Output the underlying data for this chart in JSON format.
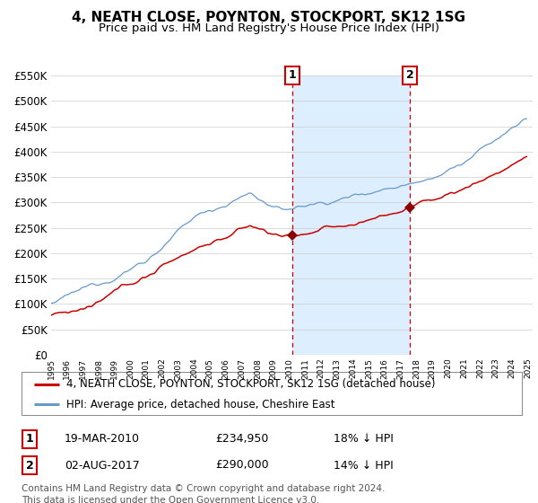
{
  "title": "4, NEATH CLOSE, POYNTON, STOCKPORT, SK12 1SG",
  "subtitle": "Price paid vs. HM Land Registry's House Price Index (HPI)",
  "ylim": [
    0,
    550000
  ],
  "yticks": [
    0,
    50000,
    100000,
    150000,
    200000,
    250000,
    300000,
    350000,
    400000,
    450000,
    500000,
    550000
  ],
  "x_start_year": 1995,
  "x_end_year": 2025,
  "sale1_date": "19-MAR-2010",
  "sale1_price": 234950,
  "sale2_date": "02-AUG-2017",
  "sale2_price": 290000,
  "sale1_hpi_diff": "18% ↓ HPI",
  "sale2_hpi_diff": "14% ↓ HPI",
  "legend_line1": "4, NEATH CLOSE, POYNTON, STOCKPORT, SK12 1SG (detached house)",
  "legend_line2": "HPI: Average price, detached house, Cheshire East",
  "footnote": "Contains HM Land Registry data © Crown copyright and database right 2024.\nThis data is licensed under the Open Government Licence v3.0.",
  "line_color_red": "#cc0000",
  "line_color_blue": "#6699cc",
  "shade_color": "#ddeeff",
  "grid_color": "#cccccc",
  "bg_color": "#ffffff",
  "sale_marker_color": "#880000",
  "vline_color": "#cc0000",
  "box_color": "#cc0000",
  "title_fontsize": 11,
  "subtitle_fontsize": 9.5,
  "axis_fontsize": 8.5,
  "legend_fontsize": 8.5,
  "table_fontsize": 9,
  "footnote_fontsize": 7.5
}
